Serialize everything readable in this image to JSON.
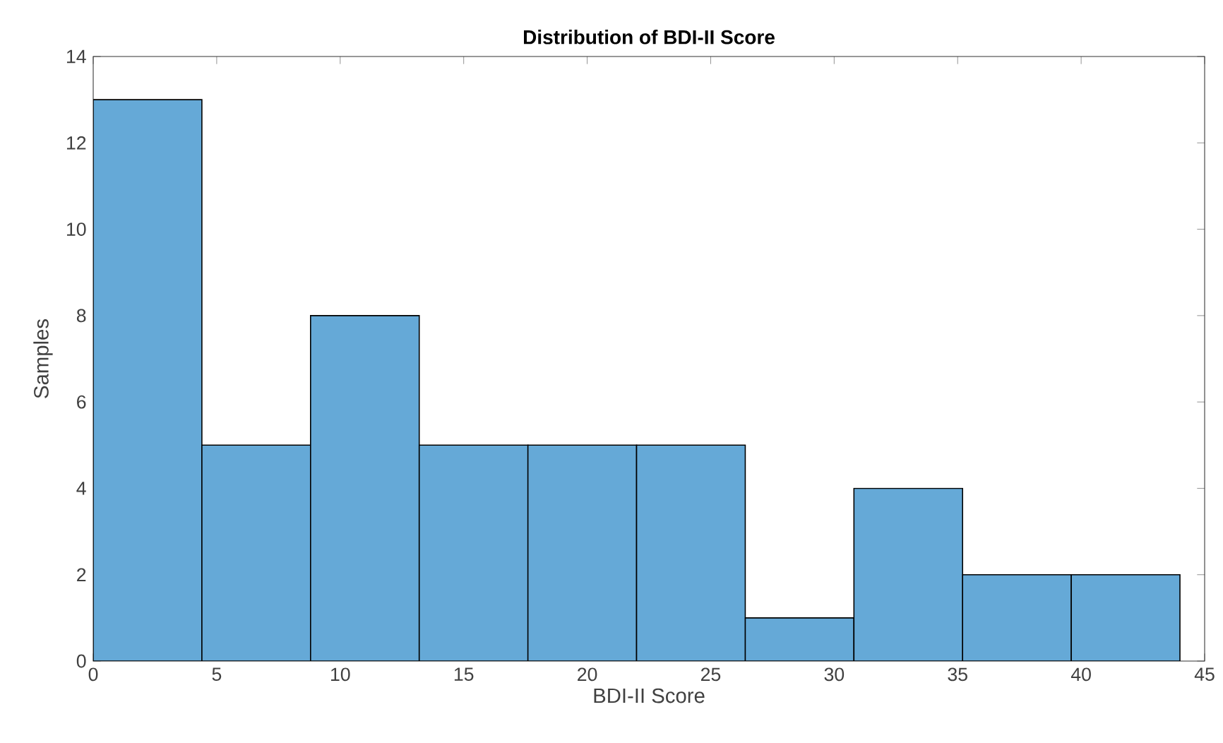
{
  "chart_data": {
    "type": "histogram",
    "title": "Distribution of BDI-II Score",
    "xlabel": "BDI-II Score",
    "ylabel": "Samples",
    "bins": [
      0,
      4.4,
      8.8,
      13.2,
      17.6,
      22,
      26.4,
      30.8,
      35.2,
      39.6,
      44
    ],
    "values": [
      13,
      5,
      8,
      5,
      5,
      5,
      1,
      4,
      2,
      2
    ],
    "color": "#65a9d7",
    "xlim": [
      0,
      45
    ],
    "xticks": [
      0,
      5,
      10,
      15,
      20,
      25,
      30,
      35,
      40,
      45
    ],
    "ylim": [
      0,
      14
    ],
    "yticks": [
      0,
      2,
      4,
      6,
      8,
      10,
      12,
      14
    ],
    "grid": false
  }
}
